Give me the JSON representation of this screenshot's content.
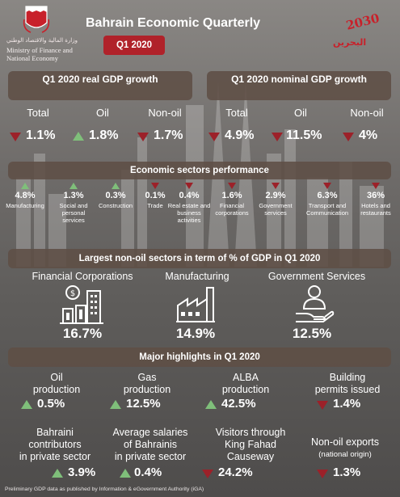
{
  "header": {
    "ministry_ar": "وزارة المالية والاقتصاد الوطني",
    "ministry_en": "Ministry of Finance and National Economy",
    "title": "Bahrain Economic Quarterly",
    "quarter": "Q1 2020",
    "vision_year": "2030",
    "vision_ar": "البحرين"
  },
  "real_gdp": {
    "title": "Q1 2020 real GDP growth",
    "items": [
      {
        "label": "Total",
        "value": "1.1%",
        "direction": "down"
      },
      {
        "label": "Oil",
        "value": "1.8%",
        "direction": "up"
      },
      {
        "label": "Non-oil",
        "value": "1.7%",
        "direction": "down"
      }
    ]
  },
  "nominal_gdp": {
    "title": "Q1 2020 nominal GDP growth",
    "items": [
      {
        "label": "Total",
        "value": "4.9%",
        "direction": "down"
      },
      {
        "label": "Oil",
        "value": "11.5%",
        "direction": "down"
      },
      {
        "label": "Non-oil",
        "value": "4%",
        "direction": "down"
      }
    ]
  },
  "sectors": {
    "title": "Economic sectors performance",
    "items": [
      {
        "value": "4.8%",
        "name": "Manufacturing",
        "direction": "up"
      },
      {
        "value": "1.3%",
        "name": "Social and personal services",
        "direction": "up"
      },
      {
        "value": "0.3%",
        "name": "Construction",
        "direction": "up"
      },
      {
        "value": "0.1%",
        "name": "Trade",
        "direction": "down"
      },
      {
        "value": "0.4%",
        "name": "Real estate and business activities",
        "direction": "down"
      },
      {
        "value": "1.6%",
        "name": "Financial corporations",
        "direction": "down"
      },
      {
        "value": "2.9%",
        "name": "Government services",
        "direction": "down"
      },
      {
        "value": "6.3%",
        "name": "Transport and Communication",
        "direction": "down"
      },
      {
        "value": "36%",
        "name": "Hotels and restaurants",
        "direction": "down"
      }
    ]
  },
  "largest": {
    "title": "Largest non-oil sectors in term of % of GDP in Q1 2020",
    "items": [
      {
        "label": "Financial Corporations",
        "value": "16.7%",
        "icon": "finance-buildings-icon"
      },
      {
        "label": "Manufacturing",
        "value": "14.9%",
        "icon": "factory-icon"
      },
      {
        "label": "Government Services",
        "value": "12.5%",
        "icon": "person-hand-icon"
      }
    ]
  },
  "highlights": {
    "title": "Major highlights in Q1 2020",
    "row1": [
      {
        "line1": "Oil",
        "line2": "production",
        "value": "0.5%",
        "direction": "up"
      },
      {
        "line1": "Gas",
        "line2": "production",
        "value": "12.5%",
        "direction": "up"
      },
      {
        "line1": "ALBA",
        "line2": "production",
        "value": "42.5%",
        "direction": "up"
      },
      {
        "line1": "Building",
        "line2": "permits issued",
        "value": "1.4%",
        "direction": "down"
      }
    ],
    "row2": [
      {
        "line1": "Bahraini",
        "line2": "contributors",
        "line3": "in private sector",
        "value": "3.9%",
        "direction": "up"
      },
      {
        "line1": "Average salaries",
        "line2": "of Bahrainis",
        "line3": "in private sector",
        "value": "0.4%",
        "direction": "up"
      },
      {
        "line1": "Visitors through",
        "line2": "King Fahad",
        "line3": "Causeway",
        "value": "24.2%",
        "direction": "down"
      },
      {
        "line1": "Non-oil exports",
        "line2": "(national origin)",
        "value": "1.3%",
        "direction": "down"
      }
    ]
  },
  "footer": "Preliminary GDP data as published by Information & eGovernment Authority (iGA)",
  "colors": {
    "down": "#9c2129",
    "up": "#7fbf7a",
    "header_box": "#5f4e46",
    "accent_red": "#b0222a"
  }
}
